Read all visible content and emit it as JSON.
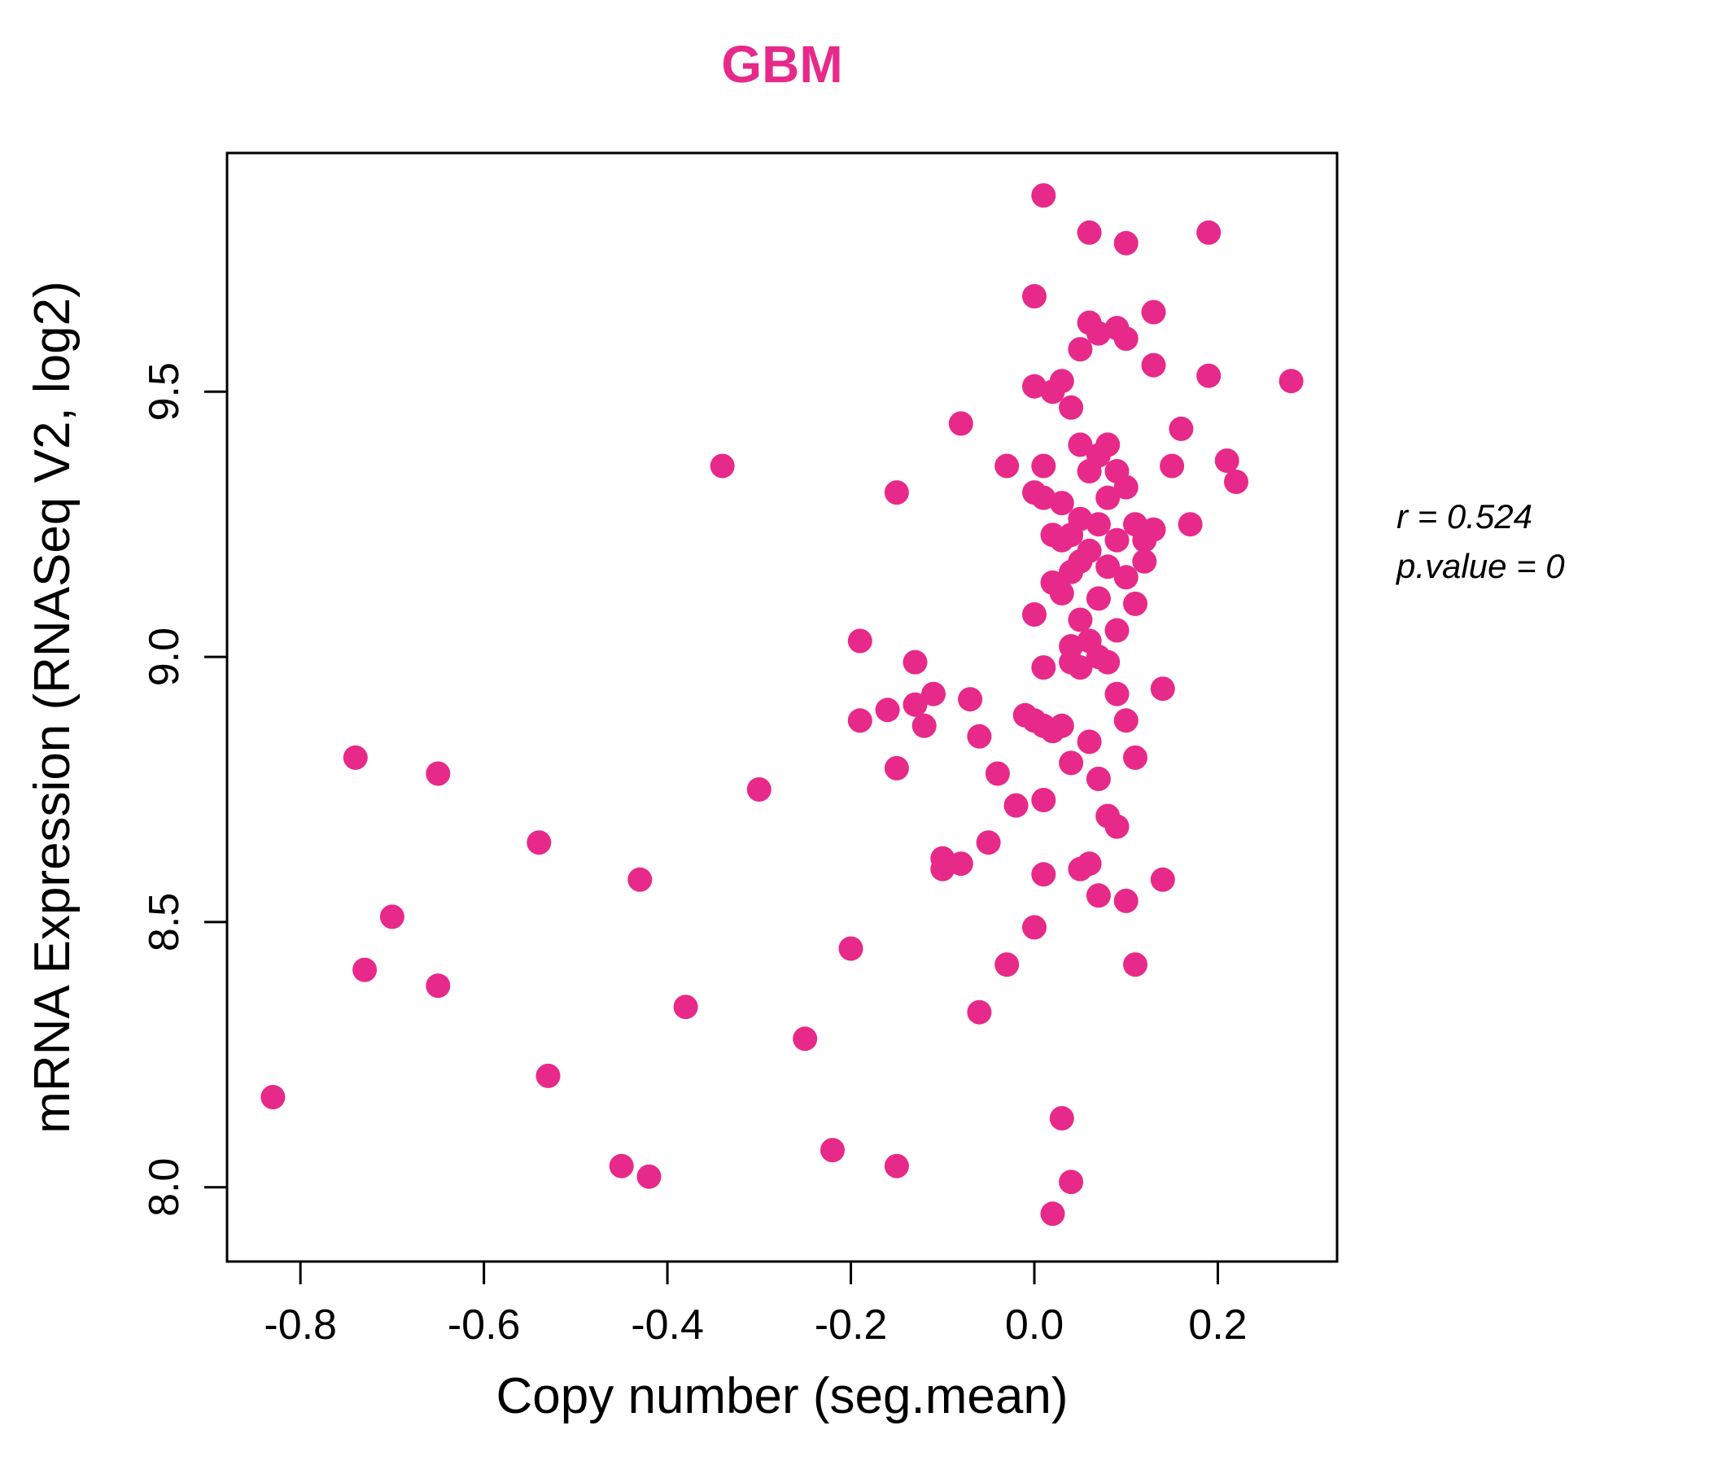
{
  "chart_data": {
    "type": "scatter",
    "title": "GBM",
    "xlabel": "Copy number (seg.mean)",
    "ylabel": "mRNA Expression (RNASeq V2, log2)",
    "annotation_r": "r = 0.524",
    "annotation_p": "p.value = 0",
    "point_color": "#E7298A",
    "title_color": "#E7298A",
    "xlim": [
      -0.88,
      0.33
    ],
    "ylim": [
      7.86,
      9.95
    ],
    "xticks": [
      -0.8,
      -0.6,
      -0.4,
      -0.2,
      0.0,
      0.2
    ],
    "xtick_labels": [
      "-0.8",
      "-0.6",
      "-0.4",
      "-0.2",
      "0.0",
      "0.2"
    ],
    "yticks": [
      8.0,
      8.5,
      9.0,
      9.5
    ],
    "ytick_labels": [
      "8.0",
      "8.5",
      "9.0",
      "9.5"
    ],
    "grid": false,
    "legend": "none",
    "points": [
      [
        -0.83,
        8.17
      ],
      [
        -0.74,
        8.81
      ],
      [
        -0.73,
        8.41
      ],
      [
        -0.7,
        8.51
      ],
      [
        -0.65,
        8.78
      ],
      [
        -0.65,
        8.38
      ],
      [
        -0.54,
        8.65
      ],
      [
        -0.53,
        8.21
      ],
      [
        -0.45,
        8.04
      ],
      [
        -0.43,
        8.58
      ],
      [
        -0.42,
        8.02
      ],
      [
        -0.38,
        8.34
      ],
      [
        -0.34,
        9.36
      ],
      [
        -0.3,
        8.75
      ],
      [
        -0.25,
        8.28
      ],
      [
        -0.22,
        8.07
      ],
      [
        -0.2,
        8.45
      ],
      [
        -0.19,
        9.03
      ],
      [
        -0.19,
        8.88
      ],
      [
        -0.16,
        8.9
      ],
      [
        -0.15,
        9.31
      ],
      [
        -0.15,
        8.79
      ],
      [
        -0.15,
        8.04
      ],
      [
        -0.13,
        8.99
      ],
      [
        -0.13,
        8.91
      ],
      [
        -0.12,
        8.87
      ],
      [
        -0.11,
        8.93
      ],
      [
        -0.1,
        8.6
      ],
      [
        -0.1,
        8.62
      ],
      [
        -0.08,
        9.44
      ],
      [
        -0.08,
        8.61
      ],
      [
        -0.07,
        8.92
      ],
      [
        -0.06,
        8.33
      ],
      [
        -0.06,
        8.85
      ],
      [
        -0.05,
        8.65
      ],
      [
        -0.04,
        8.78
      ],
      [
        -0.03,
        9.36
      ],
      [
        -0.03,
        8.42
      ],
      [
        -0.02,
        8.72
      ],
      [
        -0.01,
        8.89
      ],
      [
        0.0,
        9.68
      ],
      [
        0.0,
        9.51
      ],
      [
        0.0,
        9.31
      ],
      [
        0.0,
        9.08
      ],
      [
        0.0,
        8.88
      ],
      [
        0.0,
        8.49
      ],
      [
        0.01,
        9.87
      ],
      [
        0.01,
        9.36
      ],
      [
        0.01,
        9.3
      ],
      [
        0.01,
        8.98
      ],
      [
        0.01,
        8.87
      ],
      [
        0.01,
        8.73
      ],
      [
        0.01,
        8.59
      ],
      [
        0.02,
        9.5
      ],
      [
        0.02,
        9.23
      ],
      [
        0.02,
        9.14
      ],
      [
        0.02,
        8.86
      ],
      [
        0.02,
        7.95
      ],
      [
        0.03,
        9.52
      ],
      [
        0.03,
        9.29
      ],
      [
        0.03,
        9.22
      ],
      [
        0.03,
        9.12
      ],
      [
        0.03,
        8.87
      ],
      [
        0.03,
        8.13
      ],
      [
        0.04,
        9.47
      ],
      [
        0.04,
        9.23
      ],
      [
        0.04,
        9.16
      ],
      [
        0.04,
        9.02
      ],
      [
        0.04,
        8.99
      ],
      [
        0.04,
        8.8
      ],
      [
        0.04,
        8.01
      ],
      [
        0.05,
        9.58
      ],
      [
        0.05,
        9.4
      ],
      [
        0.05,
        9.26
      ],
      [
        0.05,
        9.18
      ],
      [
        0.05,
        9.07
      ],
      [
        0.05,
        8.98
      ],
      [
        0.05,
        8.6
      ],
      [
        0.06,
        9.8
      ],
      [
        0.06,
        9.63
      ],
      [
        0.06,
        9.35
      ],
      [
        0.06,
        9.2
      ],
      [
        0.06,
        9.03
      ],
      [
        0.06,
        8.84
      ],
      [
        0.06,
        8.61
      ],
      [
        0.07,
        9.61
      ],
      [
        0.07,
        9.38
      ],
      [
        0.07,
        9.25
      ],
      [
        0.07,
        9.11
      ],
      [
        0.07,
        9.0
      ],
      [
        0.07,
        8.77
      ],
      [
        0.07,
        8.55
      ],
      [
        0.08,
        9.4
      ],
      [
        0.08,
        9.3
      ],
      [
        0.08,
        9.17
      ],
      [
        0.08,
        8.99
      ],
      [
        0.08,
        8.7
      ],
      [
        0.09,
        9.62
      ],
      [
        0.09,
        9.35
      ],
      [
        0.09,
        9.22
      ],
      [
        0.09,
        9.05
      ],
      [
        0.09,
        8.93
      ],
      [
        0.09,
        8.68
      ],
      [
        0.1,
        9.78
      ],
      [
        0.1,
        9.6
      ],
      [
        0.1,
        9.32
      ],
      [
        0.1,
        9.15
      ],
      [
        0.1,
        8.88
      ],
      [
        0.1,
        8.54
      ],
      [
        0.11,
        9.25
      ],
      [
        0.11,
        9.1
      ],
      [
        0.11,
        8.81
      ],
      [
        0.11,
        8.42
      ],
      [
        0.12,
        9.22
      ],
      [
        0.12,
        9.18
      ],
      [
        0.13,
        9.65
      ],
      [
        0.13,
        9.55
      ],
      [
        0.13,
        9.24
      ],
      [
        0.14,
        8.94
      ],
      [
        0.14,
        8.58
      ],
      [
        0.15,
        9.36
      ],
      [
        0.16,
        9.43
      ],
      [
        0.17,
        9.25
      ],
      [
        0.19,
        9.8
      ],
      [
        0.19,
        9.53
      ],
      [
        0.21,
        9.37
      ],
      [
        0.22,
        9.33
      ],
      [
        0.28,
        9.52
      ]
    ]
  }
}
